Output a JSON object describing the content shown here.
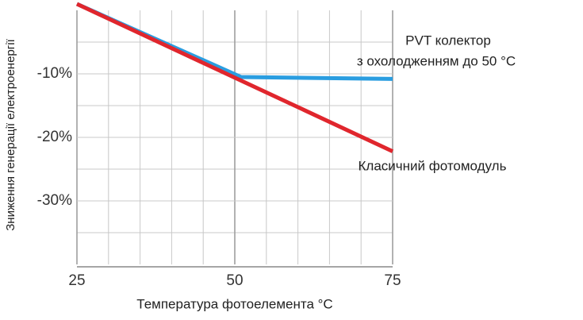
{
  "chart_data": {
    "type": "line",
    "x_label": "Температура фотоелемента °C",
    "y_label": "Зниження генерації електроенергії",
    "xlim": [
      25,
      75
    ],
    "xticks": [
      25,
      50,
      75
    ],
    "xgrid": [
      30,
      35,
      40,
      45,
      55,
      60,
      65,
      70
    ],
    "ylim": [
      -40,
      0
    ],
    "yticks": [
      {
        "value": -10,
        "label": "-10%"
      },
      {
        "value": -20,
        "label": "-20%"
      },
      {
        "value": -30,
        "label": "-30%"
      }
    ],
    "ygrid": [
      -35,
      -30,
      -25,
      -20,
      -15,
      -10,
      -5
    ],
    "series": [
      {
        "name_lines": [
          "PVT колектор",
          "з охолодженням до 50 °С"
        ],
        "color": "#2a9de0",
        "x": [
          25,
          51,
          75
        ],
        "values": [
          1,
          -10.5,
          -10.8
        ]
      },
      {
        "name": "Класичний фотомодуль",
        "color": "#e0262d",
        "x": [
          25,
          75
        ],
        "values": [
          1,
          -22.2
        ]
      }
    ]
  }
}
